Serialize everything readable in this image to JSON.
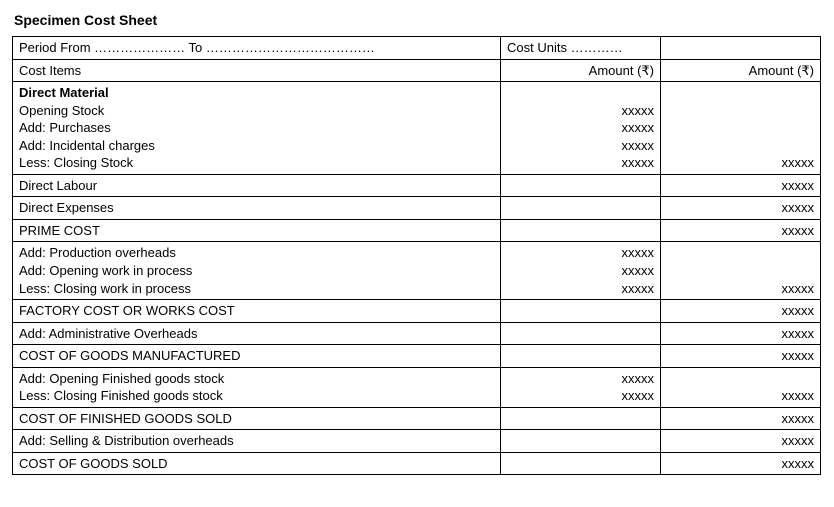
{
  "title": "Specimen Cost Sheet",
  "header": {
    "period_label": "Period   From ………………… To …………………………………",
    "cost_units_label": "Cost Units …………",
    "cost_items_label": "Cost Items",
    "amount_label_1": "Amount (₹)",
    "amount_label_2": "Amount (₹)"
  },
  "rows": [
    {
      "type": "multi",
      "lines": [
        {
          "text": "Direct Material",
          "bold": true,
          "col2": "",
          "col3": ""
        },
        {
          "text": "Opening Stock",
          "col2": "xxxxx",
          "col3": ""
        },
        {
          "text": "Add: Purchases",
          "col2": "xxxxx",
          "col3": ""
        },
        {
          "text": "Add: Incidental charges",
          "col2": "xxxxx",
          "col3": ""
        },
        {
          "text": "Less: Closing Stock",
          "col2": "xxxxx",
          "col3": "xxxxx"
        }
      ]
    },
    {
      "type": "single",
      "text": "Direct Labour",
      "col2": "",
      "col3": "xxxxx"
    },
    {
      "type": "single",
      "text": "Direct Expenses",
      "col2": "",
      "col3": "xxxxx"
    },
    {
      "type": "single",
      "text": "PRIME COST",
      "col2": "",
      "col3": "xxxxx"
    },
    {
      "type": "multi",
      "lines": [
        {
          "text": "Add: Production overheads",
          "col2": "xxxxx",
          "col3": ""
        },
        {
          "text": "Add: Opening work in process",
          "col2": "xxxxx",
          "col3": ""
        },
        {
          "text": "Less: Closing work in process",
          "col2": "xxxxx",
          "col3": "xxxxx"
        }
      ]
    },
    {
      "type": "single",
      "text": "FACTORY COST OR WORKS COST",
      "col2": "",
      "col3": "xxxxx"
    },
    {
      "type": "single",
      "text": "Add: Administrative Overheads",
      "col2": "",
      "col3": "xxxxx"
    },
    {
      "type": "single",
      "text": "COST OF GOODS MANUFACTURED",
      "col2": "",
      "col3": "xxxxx"
    },
    {
      "type": "multi",
      "lines": [
        {
          "text": "Add: Opening Finished goods stock",
          "col2": "xxxxx",
          "col3": ""
        },
        {
          "text": "Less: Closing Finished goods stock",
          "col2": "xxxxx",
          "col3": "xxxxx"
        }
      ]
    },
    {
      "type": "single",
      "text": "COST OF FINISHED GOODS SOLD",
      "col2": "",
      "col3": "xxxxx"
    },
    {
      "type": "single",
      "text": "Add: Selling & Distribution overheads",
      "col2": "",
      "col3": "xxxxx"
    },
    {
      "type": "single",
      "text": "COST OF GOODS SOLD",
      "col2": "",
      "col3": "xxxxx"
    }
  ]
}
